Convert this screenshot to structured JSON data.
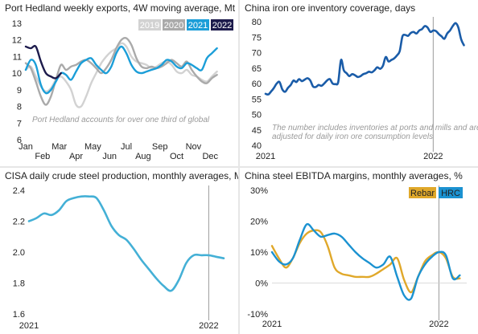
{
  "chart_data": [
    {
      "type": "line",
      "title": "Port Hedland weekly exports, 4W moving average, Mt",
      "annotation": "Port Hedland accounts for over one third of global",
      "categories": [
        "Jan",
        "Feb",
        "Mar",
        "Apr",
        "May",
        "Jun",
        "Jul",
        "Aug",
        "Sep",
        "Oct",
        "Nov",
        "Dec"
      ],
      "ylim": [
        6,
        13
      ],
      "yticks": [
        "6",
        "7",
        "8",
        "9",
        "10",
        "11",
        "12",
        "13"
      ],
      "legend_position": "top-right",
      "series": [
        {
          "name": "2019",
          "color": "#d2d2d2",
          "x": [
            0,
            0.3,
            0.6,
            0.9,
            1.2,
            1.5,
            1.8,
            2.1,
            2.4,
            2.7,
            3.0,
            3.3,
            3.6,
            3.9,
            4.2,
            4.5,
            4.8,
            5.1,
            5.4,
            5.7,
            6.0,
            6.3,
            6.6,
            6.9,
            7.2,
            7.5,
            7.8,
            8.1,
            8.4,
            8.7,
            9.0,
            9.3,
            9.6,
            9.9,
            10.2,
            10.5,
            10.8,
            11.1,
            11.4
          ],
          "values": [
            10.2,
            10.4,
            9.8,
            9.2,
            8.9,
            9.1,
            9.6,
            9.8,
            9.5,
            9.0,
            8.1,
            8.0,
            8.6,
            9.4,
            10.0,
            10.6,
            11.0,
            11.3,
            11.5,
            11.8,
            11.6,
            11.0,
            10.7,
            10.6,
            10.5,
            10.3,
            10.4,
            10.6,
            10.7,
            10.5,
            10.1,
            10.0,
            10.2,
            9.9,
            9.8,
            9.6,
            9.5,
            9.8,
            10.1
          ]
        },
        {
          "name": "2020",
          "color": "#aaaaaa",
          "x": [
            0,
            0.3,
            0.6,
            0.9,
            1.2,
            1.5,
            1.8,
            2.1,
            2.4,
            2.7,
            3.0,
            3.3,
            3.6,
            3.9,
            4.2,
            4.5,
            4.8,
            5.1,
            5.4,
            5.7,
            6.0,
            6.3,
            6.6,
            6.9,
            7.2,
            7.5,
            7.8,
            8.1,
            8.4,
            8.7,
            9.0,
            9.3,
            9.6,
            9.9,
            10.2,
            10.5,
            10.8,
            11.1,
            11.4
          ],
          "values": [
            10.6,
            10.3,
            9.5,
            8.6,
            8.1,
            8.6,
            9.6,
            10.5,
            10.2,
            10.4,
            10.5,
            10.7,
            10.8,
            10.6,
            10.3,
            10.0,
            10.3,
            10.8,
            11.5,
            12.0,
            12.1,
            11.7,
            10.9,
            10.4,
            10.3,
            10.4,
            10.3,
            10.4,
            10.6,
            10.8,
            10.6,
            10.4,
            10.7,
            10.2,
            9.8,
            9.5,
            9.4,
            9.7,
            9.9
          ]
        },
        {
          "name": "2021",
          "color": "#1b9ed8",
          "x": [
            0,
            0.3,
            0.6,
            0.9,
            1.2,
            1.5,
            1.8,
            2.1,
            2.4,
            2.7,
            3.0,
            3.3,
            3.6,
            3.9,
            4.2,
            4.5,
            4.8,
            5.1,
            5.4,
            5.7,
            6.0,
            6.3,
            6.6,
            6.9,
            7.2,
            7.5,
            7.8,
            8.1,
            8.4,
            8.7,
            9.0,
            9.3,
            9.6,
            9.9,
            10.2,
            10.5,
            10.8,
            11.1,
            11.4
          ],
          "values": [
            10.2,
            10.8,
            10.5,
            9.3,
            8.8,
            9.0,
            9.5,
            10.0,
            9.9,
            9.6,
            10.1,
            10.6,
            10.8,
            10.9,
            10.5,
            10.2,
            10.0,
            10.4,
            11.2,
            11.6,
            11.2,
            10.5,
            10.1,
            10.0,
            10.1,
            10.2,
            10.3,
            10.5,
            10.8,
            10.7,
            10.4,
            10.3,
            10.6,
            10.5,
            10.3,
            10.2,
            10.9,
            11.2,
            11.5
          ]
        },
        {
          "name": "2022",
          "color": "#1d1b4c",
          "x": [
            0,
            0.3,
            0.6,
            0.9,
            1.2,
            1.5,
            1.8,
            2.1
          ],
          "values": [
            11.6,
            11.5,
            11.6,
            10.7,
            10.0,
            9.8,
            9.7,
            10.0
          ]
        }
      ]
    },
    {
      "type": "line",
      "title": "China iron ore inventory coverage, days",
      "annotation": "The number includes inventories at ports and mills and are adjusted for daily iron ore consumption levels",
      "ylim": [
        40,
        82
      ],
      "yticks": [
        "40",
        "45",
        "50",
        "55",
        "60",
        "65",
        "70",
        "75",
        "80"
      ],
      "x_labels": [
        "2021",
        "2022"
      ],
      "x_label_pos": [
        0,
        12
      ],
      "x_max": 14.4,
      "refline_x": 12,
      "series": [
        {
          "name": "",
          "color": "#1a5ca8",
          "x": [
            0,
            0.2,
            0.4,
            0.6,
            0.8,
            1.0,
            1.2,
            1.4,
            1.6,
            1.8,
            2.0,
            2.2,
            2.4,
            2.6,
            2.8,
            3.0,
            3.2,
            3.4,
            3.6,
            3.8,
            4.0,
            4.2,
            4.4,
            4.6,
            4.8,
            5.0,
            5.2,
            5.4,
            5.6,
            5.8,
            6.0,
            6.2,
            6.4,
            6.6,
            6.8,
            7.0,
            7.2,
            7.4,
            7.6,
            7.8,
            8.0,
            8.2,
            8.4,
            8.6,
            8.8,
            9.0,
            9.2,
            9.4,
            9.6,
            9.8,
            10.0,
            10.2,
            10.4,
            10.6,
            10.8,
            11.0,
            11.2,
            11.4,
            11.6,
            11.8,
            12.0,
            12.2,
            12.4,
            12.6,
            12.8,
            13.0,
            13.2,
            13.4,
            13.6,
            13.8,
            14.0,
            14.2
          ],
          "values": [
            57.5,
            57.3,
            58.3,
            59.5,
            61,
            61.5,
            59,
            58.2,
            59.5,
            60.5,
            62,
            61.5,
            62.5,
            61.8,
            62.3,
            62.8,
            62,
            60,
            59.8,
            60.5,
            60.2,
            61,
            62,
            62.5,
            61,
            60.8,
            61.5,
            69,
            65.5,
            64.5,
            63.5,
            64.2,
            63.8,
            63.2,
            63.5,
            64.2,
            64.5,
            65,
            64.8,
            65.5,
            66.5,
            66,
            67,
            70,
            68.5,
            69,
            69.5,
            70.5,
            72,
            77,
            77.5,
            77.2,
            78.2,
            78.5,
            78,
            79,
            79.5,
            80.5,
            80,
            78.5,
            79,
            78.8,
            77.8,
            77,
            76.2,
            78,
            79,
            80.5,
            81.5,
            80,
            76,
            74
          ]
        }
      ]
    },
    {
      "type": "line",
      "title": "CISA daily crude steel production, monthly averages, Mt",
      "ylim": [
        1.6,
        2.4
      ],
      "yticks": [
        "1.6",
        "1.8",
        "2.0",
        "2.2",
        "2.4"
      ],
      "x_labels": [
        "2021",
        "2022"
      ],
      "x_label_pos": [
        0,
        12
      ],
      "x_max": 13,
      "refline_x": 12,
      "series": [
        {
          "name": "",
          "color": "#44b0d6",
          "x": [
            0,
            0.5,
            1,
            1.5,
            2,
            2.5,
            3,
            3.5,
            4,
            4.5,
            5,
            5.5,
            6,
            6.5,
            7,
            7.5,
            8,
            8.5,
            9,
            9.5,
            10,
            10.5,
            11,
            11.5,
            12,
            12.5,
            13
          ],
          "values": [
            2.2,
            2.22,
            2.25,
            2.24,
            2.27,
            2.33,
            2.35,
            2.36,
            2.36,
            2.35,
            2.27,
            2.17,
            2.11,
            2.08,
            2.02,
            1.95,
            1.89,
            1.83,
            1.78,
            1.75,
            1.82,
            1.93,
            1.98,
            1.98,
            1.98,
            1.97,
            1.96
          ]
        }
      ]
    },
    {
      "type": "line",
      "title": "China steel EBITDA margins, monthly averages, %",
      "ylim": [
        -10,
        30
      ],
      "yticks": [
        "-10%",
        "0%",
        "10%",
        "20%",
        "30%"
      ],
      "x_labels": [
        "2021",
        "2022"
      ],
      "x_label_pos": [
        0,
        12
      ],
      "x_max": 14,
      "refline_x": 12,
      "legend_position": "top-right",
      "series": [
        {
          "name": "Rebar",
          "color": "#e0a82a",
          "x": [
            0,
            0.5,
            1,
            1.5,
            2,
            2.5,
            3,
            3.5,
            4,
            4.5,
            5,
            5.5,
            6,
            6.5,
            7,
            7.5,
            8,
            8.5,
            9,
            9.5,
            10,
            10.5,
            11,
            11.5,
            12,
            12.5,
            13,
            13.5
          ],
          "values": [
            12,
            8,
            5,
            8,
            13,
            16,
            17,
            16.5,
            12,
            5,
            3,
            2.5,
            2,
            2,
            2,
            3,
            4.5,
            6,
            8,
            1,
            -3,
            2,
            7,
            9,
            10,
            8,
            2,
            1.5
          ]
        },
        {
          "name": "HRC",
          "color": "#1b92d1",
          "x": [
            0,
            0.5,
            1,
            1.5,
            2,
            2.5,
            3,
            3.5,
            4,
            4.5,
            5,
            5.5,
            6,
            6.5,
            7,
            7.5,
            8,
            8.5,
            9,
            9.5,
            10,
            10.5,
            11,
            11.5,
            12,
            12.5,
            13,
            13.5
          ],
          "values": [
            10,
            7,
            6,
            8,
            14,
            19,
            17,
            15,
            15.5,
            16,
            15,
            12.5,
            10,
            8,
            6.5,
            5,
            6,
            8.5,
            2,
            -4,
            -5,
            2,
            6,
            8.5,
            10,
            9,
            1.5,
            2.5
          ]
        }
      ]
    }
  ]
}
